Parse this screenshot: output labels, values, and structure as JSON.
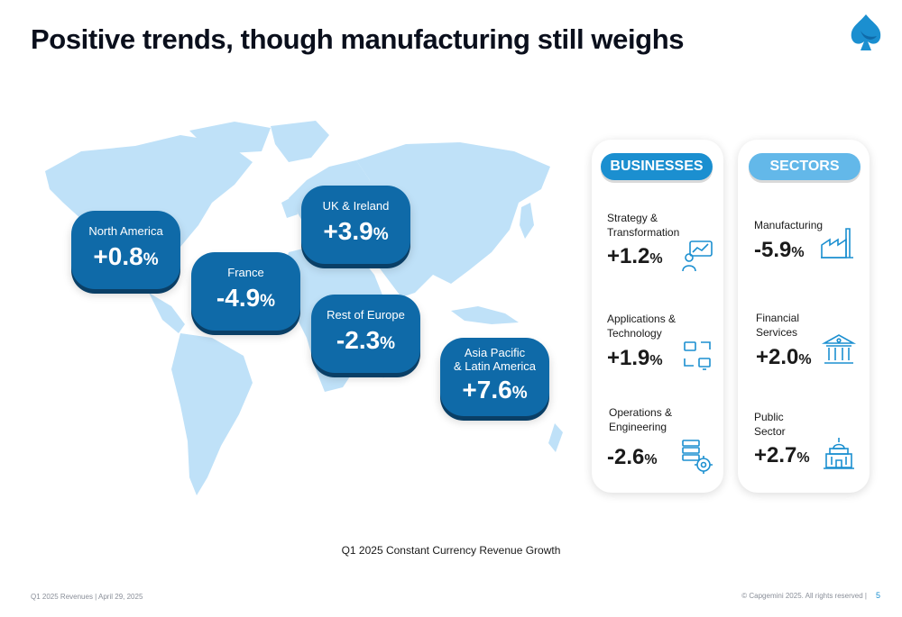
{
  "title": "Positive trends, though manufacturing still weighs",
  "brand_color": "#1b8fd0",
  "regions": [
    {
      "name": "North America",
      "value": "+0.8",
      "unit": "%"
    },
    {
      "name": "UK & Ireland",
      "value": "+3.9",
      "unit": "%"
    },
    {
      "name": "France",
      "value": "-4.9",
      "unit": "%"
    },
    {
      "name": "Rest of Europe",
      "value": "-2.3",
      "unit": "%"
    },
    {
      "name": "Asia Pacific",
      "name2": "& Latin America",
      "value": "+7.6",
      "unit": "%"
    }
  ],
  "businesses": {
    "heading": "BUSINESSES",
    "items": [
      {
        "line1": "Strategy &",
        "line2": "Transformation",
        "value": "+1.2",
        "unit": "%",
        "icon": "strategy-icon"
      },
      {
        "line1": "Applications &",
        "line2": "Technology",
        "value": "+1.9",
        "unit": "%",
        "icon": "devices-icon"
      },
      {
        "line1": "Operations &",
        "line2": "Engineering",
        "value": "-2.6",
        "unit": "%",
        "icon": "server-gear-icon"
      }
    ]
  },
  "sectors": {
    "heading": "SECTORS",
    "items": [
      {
        "line1": "Manufacturing",
        "line2": "",
        "value": "-5.9",
        "unit": "%",
        "icon": "factory-icon"
      },
      {
        "line1": "Financial",
        "line2": "Services",
        "value": "+2.0",
        "unit": "%",
        "icon": "bank-icon"
      },
      {
        "line1": "Public",
        "line2": "Sector",
        "value": "+2.7",
        "unit": "%",
        "icon": "government-building-icon"
      }
    ]
  },
  "caption": "Q1 2025 Constant Currency Revenue Growth",
  "footer": {
    "left": "Q1 2025 Revenues  |  April 29, 2025",
    "right": "© Capgemini 2025. All rights reserved  |",
    "page": "5"
  }
}
